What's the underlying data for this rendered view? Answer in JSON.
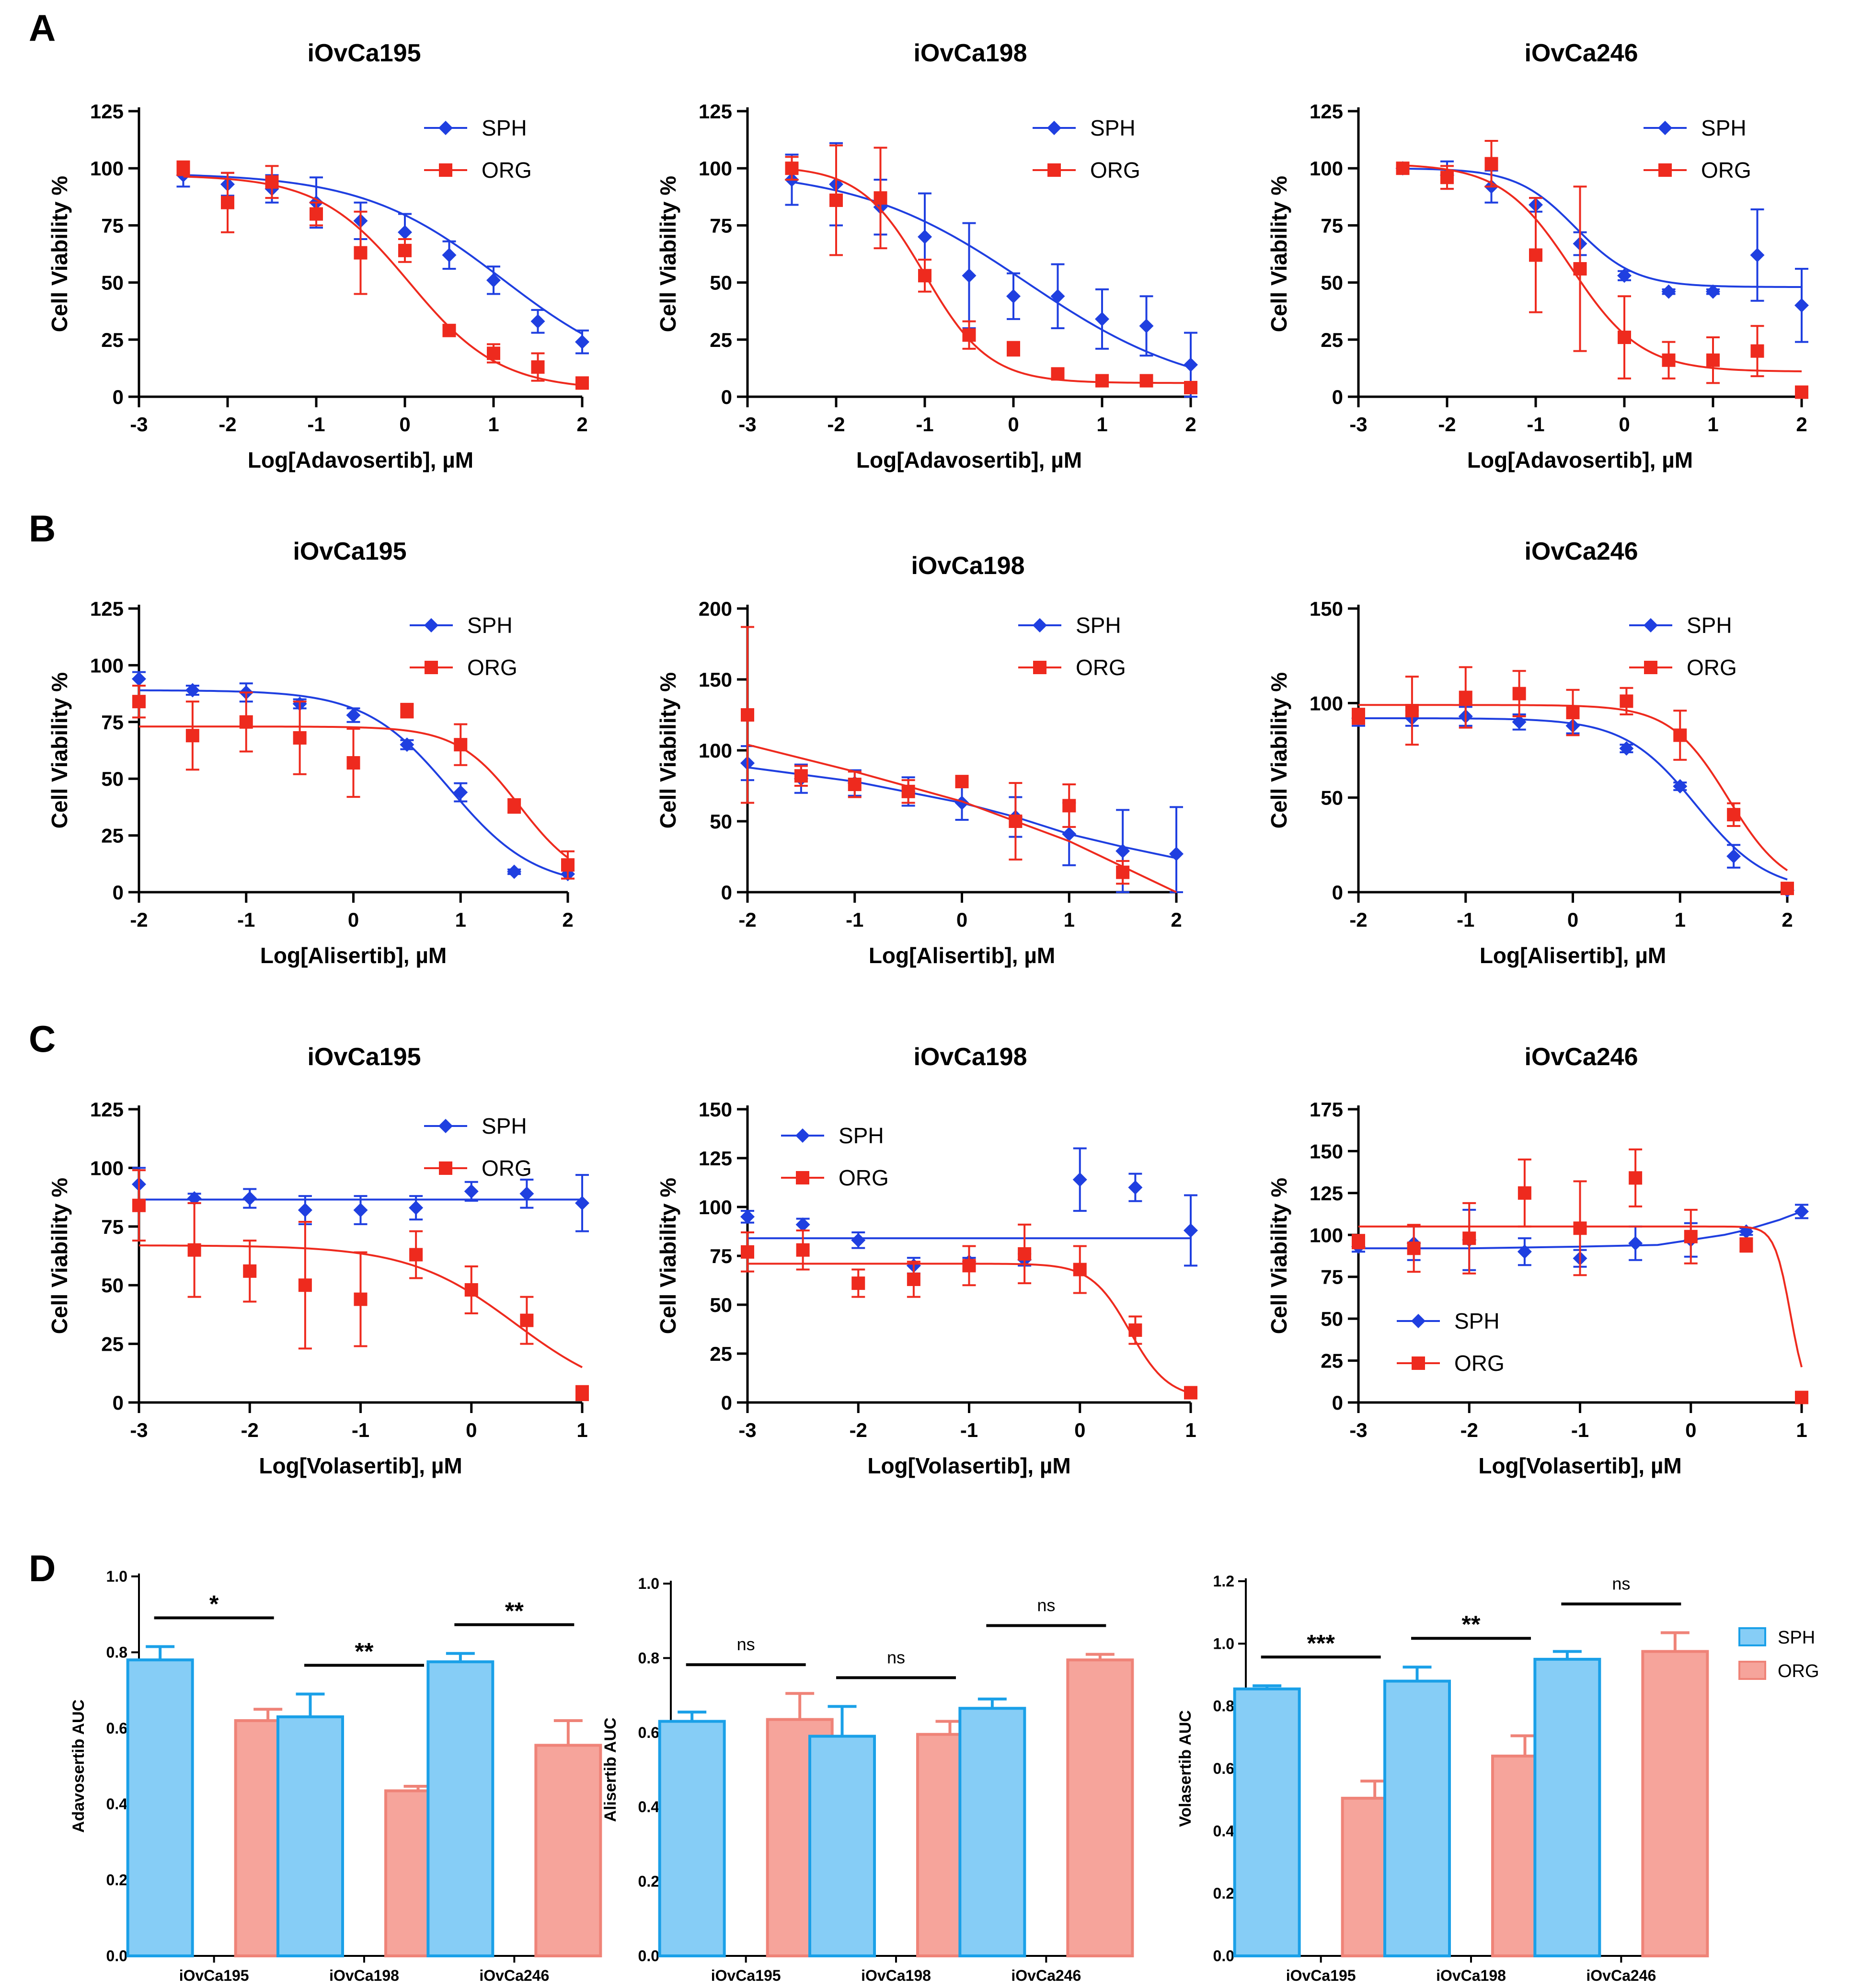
{
  "colors": {
    "sph": "#1f3fe0",
    "org": "#ee2a1e",
    "bar_sph_fill": "#86cdf6",
    "bar_sph_edge": "#1aa0e8",
    "bar_org_fill": "#f6a49b",
    "bar_org_edge": "#ef8378"
  },
  "panel_labels": [
    "A",
    "B",
    "C",
    "D"
  ],
  "chart_data": [
    {
      "id": "A1",
      "panel": "A",
      "type": "scatter",
      "title": "iOvCa195",
      "xlabel": "Log[Adavosertib], µM",
      "ylabel": "Cell Viability %",
      "xlim": [
        -3,
        2
      ],
      "ylim": [
        0,
        125
      ],
      "xticks": [
        -3,
        -2,
        -1,
        0,
        1,
        2
      ],
      "yticks": [
        0,
        25,
        50,
        75,
        100,
        125
      ],
      "legend": "top-right",
      "x": [
        -2.5,
        -2,
        -1.5,
        -1,
        -0.5,
        0,
        0.5,
        1,
        1.5,
        2
      ],
      "series": [
        {
          "name": "SPH",
          "values": [
            97,
            93,
            91,
            85,
            77,
            72,
            62,
            51,
            33,
            24
          ],
          "err": [
            5,
            5,
            6,
            11,
            8,
            8,
            6,
            6,
            5,
            5
          ],
          "fit": {
            "bottom": 5,
            "top": 98,
            "ic50": 1.1,
            "hill": 0.55
          }
        },
        {
          "name": "ORG",
          "values": [
            100,
            85,
            94,
            80,
            63,
            64,
            29,
            19,
            13,
            6
          ],
          "err": [
            3,
            13,
            7,
            5,
            18,
            5,
            2,
            4,
            6,
            2
          ],
          "fit": {
            "bottom": 3,
            "top": 97,
            "ic50": 0.05,
            "hill": 0.85
          }
        }
      ]
    },
    {
      "id": "A2",
      "panel": "A",
      "type": "scatter",
      "title": "iOvCa198",
      "xlabel": "Log[Adavosertib], µM",
      "ylabel": "Cell Viability %",
      "xlim": [
        -3,
        2
      ],
      "ylim": [
        0,
        125
      ],
      "xticks": [
        -3,
        -2,
        -1,
        0,
        1,
        2
      ],
      "yticks": [
        0,
        25,
        50,
        75,
        100,
        125
      ],
      "legend": "top-right",
      "x": [
        -2.5,
        -2,
        -1.5,
        -1,
        -0.5,
        0,
        0.5,
        1,
        1.5,
        2
      ],
      "series": [
        {
          "name": "SPH",
          "values": [
            95,
            93,
            83,
            70,
            53,
            44,
            44,
            34,
            31,
            14
          ],
          "err": [
            11,
            18,
            12,
            19,
            23,
            10,
            14,
            13,
            13,
            14
          ],
          "fit": {
            "bottom": 0,
            "top": 100,
            "ic50": 0.15,
            "hill": 0.45
          }
        },
        {
          "name": "ORG",
          "values": [
            100,
            86,
            87,
            53,
            27,
            21,
            10,
            7,
            7,
            4
          ],
          "err": [
            5,
            24,
            22,
            7,
            6,
            3,
            1,
            1,
            1,
            1
          ],
          "fit": {
            "bottom": 6,
            "top": 101,
            "ic50": -1.0,
            "hill": 1.2
          }
        }
      ]
    },
    {
      "id": "A3",
      "panel": "A",
      "type": "scatter",
      "title": "iOvCa246",
      "xlabel": "Log[Adavosertib], µM",
      "ylabel": "Cell Viability %",
      "xlim": [
        -3,
        2
      ],
      "ylim": [
        0,
        125
      ],
      "xticks": [
        -3,
        -2,
        -1,
        0,
        1,
        2
      ],
      "yticks": [
        0,
        25,
        50,
        75,
        100,
        125
      ],
      "legend": "top-right",
      "x": [
        -2.5,
        -2,
        -1.5,
        -1,
        -0.5,
        0,
        0.5,
        1,
        1.5,
        2
      ],
      "series": [
        {
          "name": "SPH",
          "values": [
            100,
            97,
            92,
            84,
            67,
            53,
            46,
            46,
            62,
            40
          ],
          "err": [
            2,
            6,
            7,
            3,
            5,
            2,
            1,
            1,
            20,
            16
          ],
          "fit": {
            "bottom": 48,
            "top": 100,
            "ic50": -0.55,
            "hill": 1.3
          }
        },
        {
          "name": "ORG",
          "values": [
            100,
            96,
            102,
            62,
            56,
            26,
            16,
            16,
            20,
            2
          ],
          "err": [
            2,
            5,
            10,
            25,
            36,
            18,
            8,
            10,
            11,
            1
          ],
          "fit": {
            "bottom": 11,
            "top": 102,
            "ic50": -0.6,
            "hill": 1.1
          }
        }
      ]
    },
    {
      "id": "B1",
      "panel": "B",
      "type": "scatter",
      "title": "iOvCa195",
      "xlabel": "Log[Alisertib], µM",
      "ylabel": "Cell Viability %",
      "xlim": [
        -2,
        2
      ],
      "ylim": [
        0,
        125
      ],
      "xticks": [
        -2,
        -1,
        0,
        1,
        2
      ],
      "yticks": [
        0,
        25,
        50,
        75,
        100,
        125
      ],
      "legend": "top-right",
      "x": [
        -2,
        -1.5,
        -1,
        -0.5,
        0,
        0.5,
        1,
        1.5,
        2
      ],
      "series": [
        {
          "name": "SPH",
          "values": [
            94,
            89,
            88,
            83,
            78,
            65,
            44,
            9,
            8
          ],
          "err": [
            3,
            2,
            4,
            2,
            3,
            2,
            4,
            1,
            2
          ],
          "fit": {
            "bottom": 2,
            "top": 89,
            "ic50": 0.9,
            "hill": 1.1
          }
        },
        {
          "name": "ORG",
          "values": [
            84,
            69,
            75,
            68,
            57,
            80,
            65,
            38,
            12
          ],
          "err": [
            7,
            15,
            13,
            16,
            15,
            3,
            9,
            3,
            6
          ],
          "fit": {
            "bottom": 3,
            "top": 73,
            "ic50": 1.55,
            "hill": 1.5
          }
        }
      ]
    },
    {
      "id": "B2",
      "panel": "B",
      "type": "scatter",
      "title": "iOvCa198",
      "xlabel": "Log[Alisertib], µM",
      "ylabel": "Cell Viability %",
      "xlim": [
        -2,
        2
      ],
      "ylim": [
        0,
        200
      ],
      "xticks": [
        -2,
        -1,
        0,
        1,
        2
      ],
      "yticks": [
        0,
        50,
        100,
        150,
        200
      ],
      "legend": "top-right",
      "x": [
        -2,
        -1.5,
        -1,
        -0.5,
        0,
        0.5,
        1,
        1.5,
        2
      ],
      "series": [
        {
          "name": "SPH",
          "values": [
            91,
            80,
            77,
            71,
            63,
            53,
            41,
            29,
            27
          ],
          "err": [
            12,
            10,
            9,
            10,
            12,
            14,
            22,
            29,
            33
          ],
          "fit": {
            "line": [
              [
                -2,
                88
              ],
              [
                -1,
                78
              ],
              [
                0,
                63
              ],
              [
                0.5,
                53
              ],
              [
                1,
                41
              ],
              [
                1.5,
                32
              ],
              [
                2,
                24
              ]
            ]
          }
        },
        {
          "name": "ORG",
          "values": [
            125,
            82,
            76,
            71,
            78,
            50,
            61,
            14,
            null
          ],
          "err": [
            62,
            7,
            9,
            8,
            3,
            27,
            15,
            8,
            null
          ],
          "fit": {
            "line": [
              [
                -2,
                104
              ],
              [
                -1,
                85
              ],
              [
                0,
                64
              ],
              [
                0.5,
                50
              ],
              [
                1,
                36
              ],
              [
                1.5,
                18
              ],
              [
                2,
                0
              ]
            ]
          }
        }
      ]
    },
    {
      "id": "B3",
      "panel": "B",
      "type": "scatter",
      "title": "iOvCa246",
      "xlabel": "Log[Alisertib], µM",
      "ylabel": "Cell Viability %",
      "xlim": [
        -2,
        2
      ],
      "ylim": [
        0,
        150
      ],
      "xticks": [
        -2,
        -1,
        0,
        1,
        2
      ],
      "yticks": [
        0,
        50,
        100,
        150
      ],
      "legend": "top-right",
      "x": [
        -2,
        -1.5,
        -1,
        -0.5,
        0,
        0.5,
        1,
        1.5,
        2
      ],
      "series": [
        {
          "name": "SPH",
          "values": [
            92,
            92,
            93,
            90,
            88,
            76,
            56,
            19,
            1
          ],
          "err": [
            4,
            4,
            5,
            4,
            4,
            2,
            2,
            6,
            1
          ],
          "fit": {
            "bottom": 0,
            "top": 92,
            "ic50": 1.15,
            "hill": 1.3
          }
        },
        {
          "name": "ORG",
          "values": [
            93,
            96,
            103,
            105,
            95,
            101,
            83,
            41,
            2
          ],
          "err": [
            4,
            18,
            16,
            12,
            12,
            7,
            13,
            6,
            2
          ],
          "fit": {
            "bottom": 0,
            "top": 99,
            "ic50": 1.45,
            "hill": 1.6
          }
        }
      ]
    },
    {
      "id": "C1",
      "panel": "C",
      "type": "scatter",
      "title": "iOvCa195",
      "xlabel": "Log[Volasertib], µM",
      "ylabel": "Cell Viability %",
      "xlim": [
        -3,
        1
      ],
      "ylim": [
        0,
        125
      ],
      "xticks": [
        -3,
        -2,
        -1,
        0,
        1
      ],
      "yticks": [
        0,
        25,
        50,
        75,
        100,
        125
      ],
      "legend": "top-right",
      "x": [
        -3,
        -2.5,
        -2,
        -1.5,
        -1,
        -0.5,
        0,
        0.5,
        1
      ],
      "series": [
        {
          "name": "SPH",
          "values": [
            93,
            87,
            87,
            82,
            82,
            83,
            90,
            89,
            85
          ],
          "err": [
            7,
            2,
            4,
            6,
            6,
            5,
            4,
            6,
            12
          ],
          "fit": {
            "flat": 86.5
          }
        },
        {
          "name": "ORG",
          "values": [
            84,
            65,
            56,
            50,
            44,
            63,
            48,
            35,
            4
          ],
          "err": [
            15,
            20,
            13,
            27,
            20,
            10,
            10,
            10,
            3
          ],
          "fit": {
            "bottom": 0,
            "top": 67,
            "ic50": 0.4,
            "hill": 0.9
          }
        }
      ]
    },
    {
      "id": "C2",
      "panel": "C",
      "type": "scatter",
      "title": "iOvCa198",
      "xlabel": "Log[Volasertib], µM",
      "ylabel": "Cell Viability %",
      "xlim": [
        -3,
        1
      ],
      "ylim": [
        0,
        150
      ],
      "xticks": [
        -3,
        -2,
        -1,
        0,
        1
      ],
      "yticks": [
        0,
        25,
        50,
        75,
        100,
        125,
        150
      ],
      "legend": "top-left",
      "x": [
        -3,
        -2.5,
        -2,
        -1.5,
        -1,
        -0.5,
        0,
        0.5,
        1
      ],
      "series": [
        {
          "name": "SPH",
          "values": [
            95,
            91,
            83,
            70,
            72,
            73,
            114,
            110,
            88
          ],
          "err": [
            3,
            3,
            4,
            4,
            2,
            3,
            16,
            7,
            18
          ],
          "fit": {
            "flat": 84
          }
        },
        {
          "name": "ORG",
          "values": [
            77,
            78,
            61,
            63,
            70,
            76,
            68,
            37,
            5
          ],
          "err": [
            10,
            10,
            7,
            9,
            10,
            15,
            12,
            7,
            1
          ],
          "fit": {
            "bottom": 2,
            "top": 71,
            "ic50": 0.45,
            "hill": 2.5
          }
        }
      ]
    },
    {
      "id": "C3",
      "panel": "C",
      "type": "scatter",
      "title": "iOvCa246",
      "xlabel": "Log[Volasertib], µM",
      "ylabel": "Cell Viability %",
      "xlim": [
        -3,
        1
      ],
      "ylim": [
        0,
        175
      ],
      "xticks": [
        -3,
        -2,
        -1,
        0,
        1
      ],
      "yticks": [
        0,
        25,
        50,
        75,
        100,
        125,
        150,
        175
      ],
      "legend": "bottom-left",
      "x": [
        -3,
        -2.5,
        -2,
        -1.5,
        -1,
        -0.5,
        0,
        0.5,
        1
      ],
      "series": [
        {
          "name": "SPH",
          "values": [
            93,
            95,
            97,
            90,
            86,
            95,
            97,
            102,
            114
          ],
          "err": [
            3,
            10,
            18,
            8,
            5,
            10,
            10,
            2,
            4
          ],
          "fit": {
            "line": [
              [
                -3,
                92
              ],
              [
                -2,
                92
              ],
              [
                -1,
                93
              ],
              [
                -0.3,
                94
              ],
              [
                0,
                97
              ],
              [
                0.3,
                100
              ],
              [
                0.5,
                103
              ],
              [
                0.8,
                109
              ],
              [
                1,
                114
              ]
            ]
          }
        },
        {
          "name": "ORG",
          "values": [
            96,
            92,
            98,
            125,
            104,
            134,
            99,
            94,
            3
          ],
          "err": [
            4,
            14,
            21,
            20,
            28,
            17,
            16,
            4,
            1
          ],
          "fit": {
            "bottom": 0,
            "top": 105,
            "ic50": 0.9,
            "hill": 6
          }
        }
      ]
    },
    {
      "id": "D1",
      "panel": "D",
      "type": "bar",
      "ylabel": "Adavosertib AUC",
      "ylim": [
        0,
        1
      ],
      "yticks": [
        0.0,
        0.2,
        0.4,
        0.6,
        0.8,
        1.0
      ],
      "categories": [
        "iOvCa195",
        "iOvCa198",
        "iOvCa246"
      ],
      "series": [
        {
          "name": "SPH",
          "values": [
            0.78,
            0.63,
            0.775
          ],
          "err": [
            0.035,
            0.06,
            0.022
          ]
        },
        {
          "name": "ORG",
          "values": [
            0.62,
            0.435,
            0.555
          ],
          "err": [
            0.03,
            0.012,
            0.065
          ]
        }
      ],
      "significance": [
        "*",
        "**",
        "**"
      ]
    },
    {
      "id": "D2",
      "panel": "D",
      "type": "bar",
      "ylabel": "Alisertib AUC",
      "ylim": [
        0,
        1
      ],
      "yticks": [
        0.0,
        0.2,
        0.4,
        0.6,
        0.8,
        1.0
      ],
      "categories": [
        "iOvCa195",
        "iOvCa198",
        "iOvCa246"
      ],
      "series": [
        {
          "name": "SPH",
          "values": [
            0.63,
            0.59,
            0.665
          ],
          "err": [
            0.025,
            0.08,
            0.025
          ]
        },
        {
          "name": "ORG",
          "values": [
            0.635,
            0.595,
            0.795
          ],
          "err": [
            0.07,
            0.035,
            0.015
          ]
        }
      ],
      "significance": [
        "ns",
        "ns",
        "ns"
      ]
    },
    {
      "id": "D3",
      "panel": "D",
      "type": "bar",
      "ylabel": "Volasertib AUC",
      "ylim": [
        0,
        1.2
      ],
      "yticks": [
        0.0,
        0.2,
        0.4,
        0.6,
        0.8,
        1.0,
        1.2
      ],
      "categories": [
        "iOvCa195",
        "iOvCa198",
        "iOvCa246"
      ],
      "series": [
        {
          "name": "SPH",
          "values": [
            0.855,
            0.88,
            0.95
          ],
          "err": [
            0.01,
            0.045,
            0.025
          ]
        },
        {
          "name": "ORG",
          "values": [
            0.505,
            0.64,
            0.975
          ],
          "err": [
            0.055,
            0.065,
            0.06
          ]
        }
      ],
      "significance": [
        "***",
        "**",
        "ns"
      ],
      "legend": "right"
    }
  ]
}
